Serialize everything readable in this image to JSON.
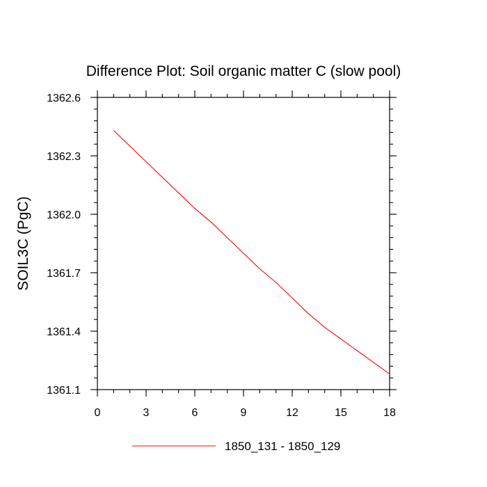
{
  "chart_data": {
    "type": "line",
    "title": "Difference Plot: Soil organic matter C (slow pool)",
    "xlabel": "",
    "ylabel": "SOIL3C  (PgC)",
    "xlim": [
      0,
      18
    ],
    "ylim": [
      1361.1,
      1362.6
    ],
    "xticks": [
      0,
      3,
      6,
      9,
      12,
      15,
      18
    ],
    "xtick_labels": [
      "0",
      "3",
      "6",
      "9",
      "12",
      "15",
      "18"
    ],
    "yticks": [
      1361.1,
      1361.4,
      1361.7,
      1362.0,
      1362.3,
      1362.6
    ],
    "ytick_labels": [
      "1361.1",
      "1361.4",
      "1361.7",
      "1362.0",
      "1362.3",
      "1362.6"
    ],
    "grid": false,
    "legend_position": "bottom",
    "series": [
      {
        "name": "1850_131 - 1850_129",
        "color": "#ff0000",
        "x": [
          1,
          2,
          3,
          4,
          5,
          6,
          7,
          8,
          9,
          10,
          11,
          12,
          13,
          14,
          15,
          16,
          17,
          18
        ],
        "values": [
          1362.43,
          1362.35,
          1362.27,
          1362.19,
          1362.11,
          1362.03,
          1361.96,
          1361.88,
          1361.8,
          1361.72,
          1361.65,
          1361.57,
          1361.49,
          1361.42,
          1361.36,
          1361.3,
          1361.24,
          1361.18
        ]
      }
    ]
  }
}
